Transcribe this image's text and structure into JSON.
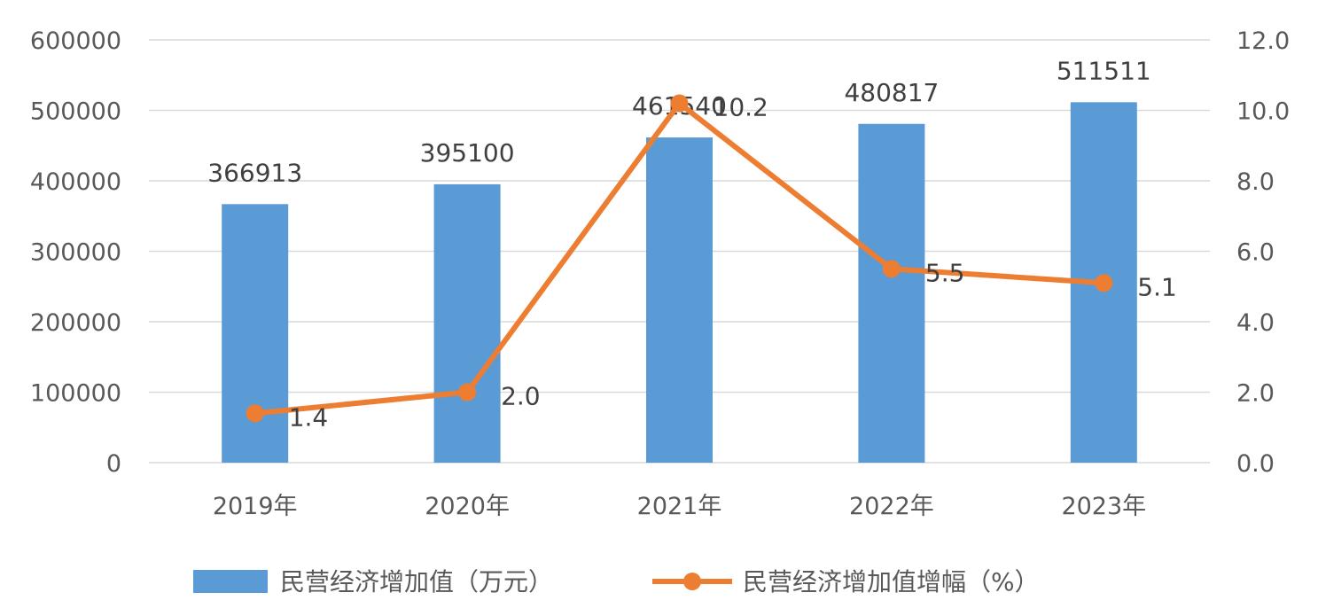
{
  "chart_data": {
    "type": "bar",
    "categories": [
      "2019年",
      "2020年",
      "2021年",
      "2022年",
      "2023年"
    ],
    "series": [
      {
        "name": "民营经济增加值（万元）",
        "type": "bar",
        "axis": "left",
        "color": "#5B9BD5",
        "values": [
          366913,
          395100,
          461540,
          480817,
          511511
        ],
        "labels": [
          "366913",
          "395100",
          "461540",
          "480817",
          "511511"
        ]
      },
      {
        "name": "民营经济增加值增幅（%）",
        "type": "line",
        "axis": "right",
        "color": "#ED7D31",
        "values": [
          1.4,
          2.0,
          10.2,
          5.5,
          5.1
        ],
        "labels": [
          "1.4",
          "2.0",
          "10.2",
          "5.5",
          "5.1"
        ]
      }
    ],
    "y_left": {
      "min": 0,
      "max": 600000,
      "ticks": [
        "0",
        "100000",
        "200000",
        "300000",
        "400000",
        "500000",
        "600000"
      ]
    },
    "y_right": {
      "min": 0,
      "max": 12,
      "ticks": [
        "0.0",
        "2.0",
        "4.0",
        "6.0",
        "8.0",
        "10.0",
        "12.0"
      ]
    },
    "grid": true,
    "legend_position": "bottom",
    "gridline_color": "#D9D9D9"
  }
}
